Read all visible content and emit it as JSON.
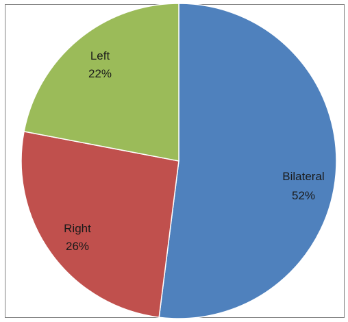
{
  "chart_data": {
    "type": "pie",
    "title": "",
    "slices": [
      {
        "label": "Bilateral",
        "value": 52,
        "display": "52%",
        "color": "#4F81BD"
      },
      {
        "label": "Right",
        "value": 26,
        "display": "26%",
        "color": "#C0504D"
      },
      {
        "label": "Left",
        "value": 22,
        "display": "22%",
        "color": "#9BBB59"
      }
    ],
    "start_angle_deg": 0,
    "direction": "clockwise",
    "legend": "none",
    "labels_inside": true
  }
}
